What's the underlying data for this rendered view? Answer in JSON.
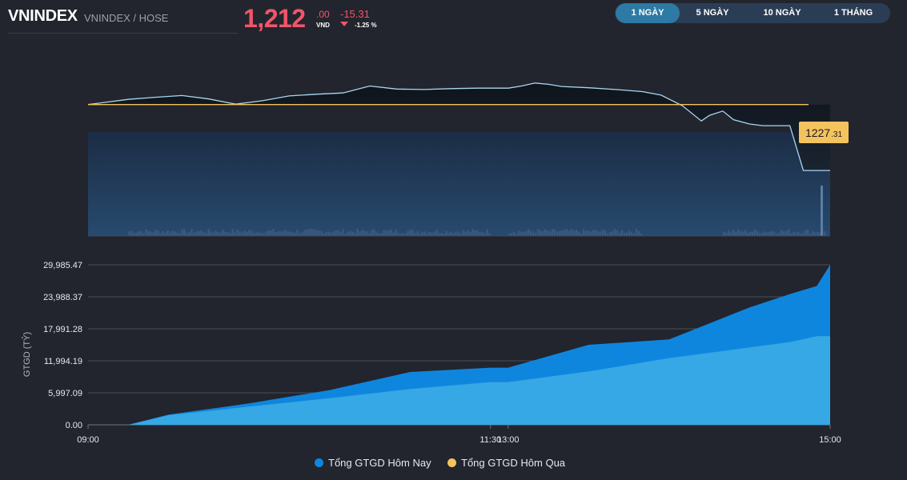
{
  "header": {
    "symbol": "VNINDEX",
    "exchange": "VNINDEX / HOSE",
    "price_int": "1,212",
    "price_dec": ".00",
    "currency": "VND",
    "change": "-15.31",
    "change_pct": "-1.25 %"
  },
  "range_tabs": [
    {
      "label": "1 NGÀY",
      "active": true
    },
    {
      "label": "5 NGÀY",
      "active": false
    },
    {
      "label": "10 NGÀY",
      "active": false
    },
    {
      "label": "1 THÁNG",
      "active": false
    }
  ],
  "colors": {
    "down": "#f1556a",
    "reference": "#f3c35e",
    "price_line": "#a9d6f3",
    "today": "#0f86de",
    "yesterday": "#35a8e5",
    "active_tab": "#2d7aa4"
  },
  "chart_data": [
    {
      "type": "line",
      "name": "intraday-price",
      "reference_value": 1227.31,
      "reference_label_int": "1227",
      "reference_label_dec": ".31",
      "x_range": [
        "09:00",
        "15:00"
      ],
      "ylim": [
        1208.5,
        1233
      ],
      "x": [
        "09:00",
        "09:15",
        "09:25",
        "09:35",
        "09:45",
        "09:55",
        "10:05",
        "10:15",
        "10:25",
        "10:35",
        "10:45",
        "10:55",
        "11:05",
        "11:15",
        "11:25",
        "11:30",
        "13:00",
        "13:05",
        "13:10",
        "13:15",
        "13:20",
        "13:30",
        "13:40",
        "13:50",
        "13:57",
        "14:05",
        "14:12",
        "14:15",
        "14:20",
        "14:24",
        "14:30",
        "14:35",
        "14:40",
        "14:45",
        "14:50",
        "15:00"
      ],
      "values": [
        1227.31,
        1228.5,
        1229.0,
        1229.4,
        1228.6,
        1227.4,
        1228.2,
        1229.3,
        1229.7,
        1230.0,
        1231.6,
        1230.9,
        1230.8,
        1231.0,
        1231.1,
        1231.1,
        1231.1,
        1231.6,
        1232.3,
        1232.0,
        1231.5,
        1231.2,
        1230.8,
        1230.3,
        1229.5,
        1227.0,
        1223.5,
        1224.8,
        1225.8,
        1223.8,
        1222.8,
        1222.4,
        1222.4,
        1222.4,
        1212.0,
        1212.0
      ]
    },
    {
      "type": "area",
      "ylabel": "GTGD (TỶ)",
      "yticks": [
        "0.00",
        "5,997.09",
        "11,994.19",
        "17,991.28",
        "23,988.37",
        "29,985.47"
      ],
      "ylim": [
        0,
        29985.47
      ],
      "xticks": [
        "09:00",
        "11:30",
        "13:00",
        "15:00"
      ],
      "x": [
        "09:00",
        "09:15",
        "09:30",
        "10:00",
        "10:30",
        "11:00",
        "11:30",
        "13:00",
        "13:30",
        "14:00",
        "14:15",
        "14:30",
        "14:45",
        "14:55",
        "15:00"
      ],
      "series": [
        {
          "name": "Tổng GTGD Hôm Nay",
          "values": [
            0,
            0,
            1900,
            4000,
            6500,
            9900,
            10700,
            10700,
            15000,
            16000,
            19000,
            22000,
            24500,
            26000,
            29985.47
          ]
        },
        {
          "name": "Tổng GTGD Hôm Qua",
          "values": [
            0,
            0,
            1800,
            3400,
            5000,
            6700,
            8000,
            8000,
            10000,
            12500,
            13500,
            14500,
            15500,
            16600,
            16600
          ]
        }
      ]
    }
  ]
}
